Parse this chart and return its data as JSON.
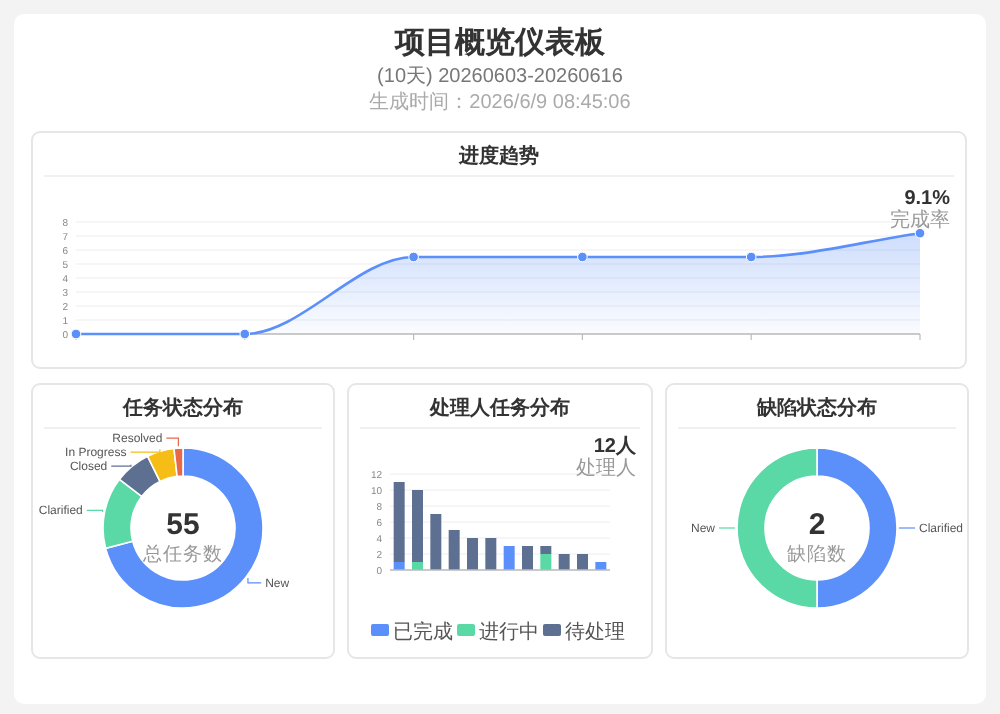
{
  "chart_data": [
    {
      "type": "other",
      "title": "项目概览仪表板",
      "subtitle": "(10天) 20260603-20260616",
      "annotations": [
        "生成时间：2026/6/9 08:45:06"
      ]
    },
    {
      "type": "area",
      "title": "进度趋势",
      "categories": [
        null,
        null,
        null,
        null,
        null,
        null
      ],
      "values": [
        0,
        0,
        5.5,
        5.5,
        5.5,
        7.2
      ],
      "color": "#5b8ff9",
      "ylim": [
        0,
        8
      ],
      "yticks": [
        0,
        1,
        2,
        3,
        4,
        5,
        6,
        7,
        8
      ],
      "grid": "y",
      "marker": "circle",
      "annotations": [
        "9.1%",
        "完成率"
      ]
    },
    {
      "type": "donut",
      "title": "任务状态分布",
      "categories": [
        "New",
        "Clarified",
        "Closed",
        "In Progress",
        "Resolved"
      ],
      "values": [
        70.9,
        14.5,
        7.3,
        5.5,
        1.8
      ],
      "colors": [
        "#5b8ff9",
        "#5ad8a6",
        "#5d7092",
        "#f6bd16",
        "#e8684a"
      ],
      "annotations": [
        "55",
        "总任务数"
      ]
    },
    {
      "type": "bar",
      "title": "处理人任务分布",
      "stacked": true,
      "categories": [
        null,
        null,
        null,
        null,
        null,
        null,
        null,
        null,
        null,
        null,
        null,
        null
      ],
      "series": [
        {
          "name": "已完成",
          "color": "#5b8ff9",
          "values": [
            1,
            0,
            0,
            0,
            0,
            0,
            3,
            0,
            0,
            0,
            0,
            1
          ]
        },
        {
          "name": "进行中",
          "color": "#5ad8a6",
          "values": [
            0,
            1,
            0,
            0,
            0,
            0,
            0,
            0,
            2,
            0,
            0,
            0
          ]
        },
        {
          "name": "待处理",
          "color": "#5d7092",
          "values": [
            10,
            9,
            7,
            5,
            4,
            4,
            0,
            3,
            1,
            2,
            2,
            0
          ]
        }
      ],
      "ylim": [
        0,
        12
      ],
      "yticks": [
        0,
        2,
        4,
        6,
        8,
        10,
        12
      ],
      "grid": "y",
      "legend": "bottom",
      "annotations": [
        "12人",
        "处理人"
      ]
    },
    {
      "type": "donut",
      "title": "缺陷状态分布",
      "categories": [
        "Clarified",
        "New"
      ],
      "values": [
        50,
        50
      ],
      "colors": [
        "#5b8ff9",
        "#5ad8a6"
      ],
      "annotations": [
        "2",
        "缺陷数"
      ]
    }
  ]
}
